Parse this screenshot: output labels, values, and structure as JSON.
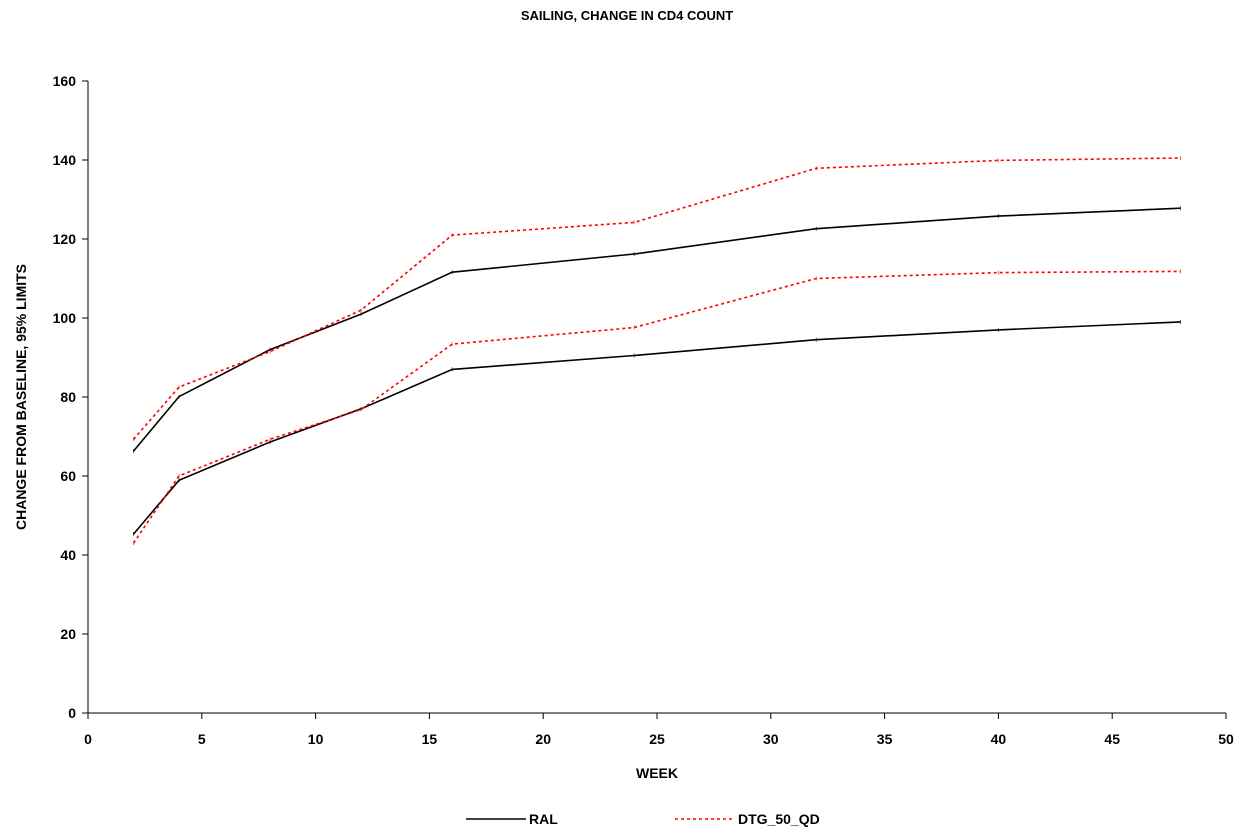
{
  "chart_data": {
    "type": "line",
    "title": "SAILING, CHANGE IN CD4 COUNT",
    "xlabel": "WEEK",
    "ylabel": "CHANGE FROM BASELINE, 95% LIMITS",
    "xlim": [
      0,
      50
    ],
    "ylim": [
      0,
      160
    ],
    "xticks": [
      0,
      5,
      10,
      15,
      20,
      25,
      30,
      35,
      40,
      45,
      50
    ],
    "yticks": [
      0,
      20,
      40,
      60,
      80,
      100,
      120,
      140,
      160
    ],
    "grid": false,
    "legend_position": "bottom",
    "x": [
      2,
      4,
      8,
      12,
      16,
      24,
      32,
      40,
      48
    ],
    "series": [
      {
        "name": "RAL",
        "bound": "upper",
        "style": "solid",
        "color": "#000000",
        "values": [
          66.3,
          80.1,
          92.0,
          101.0,
          111.6,
          116.2,
          122.6,
          125.8,
          127.8
        ]
      },
      {
        "name": "RAL",
        "bound": "lower",
        "style": "solid",
        "color": "#000000",
        "values": [
          45.3,
          58.9,
          68.6,
          77.0,
          87.0,
          90.5,
          94.5,
          97.0,
          99.0
        ]
      },
      {
        "name": "DTG_50_QD",
        "bound": "upper",
        "style": "dotted",
        "color": "#ff0000",
        "values": [
          69.3,
          82.5,
          91.5,
          102.0,
          121.0,
          124.2,
          137.9,
          139.9,
          140.5
        ]
      },
      {
        "name": "DTG_50_QD",
        "bound": "lower",
        "style": "dotted",
        "color": "#ff0000",
        "values": [
          43.0,
          60.0,
          69.3,
          76.8,
          93.4,
          97.6,
          110.0,
          111.5,
          111.8
        ]
      }
    ],
    "legend": [
      {
        "label": "RAL",
        "style": "solid",
        "color": "#000000"
      },
      {
        "label": "DTG_50_QD",
        "style": "dotted",
        "color": "#ff0000"
      }
    ]
  }
}
